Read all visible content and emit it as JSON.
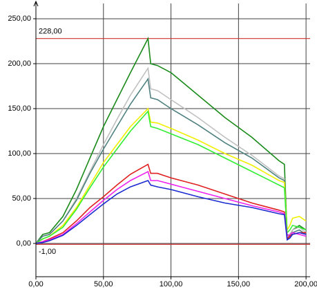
{
  "chart_data": {
    "type": "line",
    "x": [
      0,
      5,
      10,
      20,
      30,
      40,
      50,
      60,
      70,
      83,
      85,
      90,
      100,
      120,
      140,
      160,
      180,
      184,
      186,
      188,
      190,
      195,
      200
    ],
    "series": [
      {
        "color": "#1a8a1a",
        "values": [
          0,
          10,
          12,
          30,
          60,
          95,
          130,
          160,
          190,
          228,
          200,
          198,
          190,
          165,
          140,
          118,
          92,
          88,
          10,
          8,
          15,
          20,
          15
        ]
      },
      {
        "color": "#c0c0c0",
        "values": [
          0,
          8,
          10,
          25,
          50,
          80,
          110,
          138,
          165,
          195,
          172,
          170,
          160,
          140,
          118,
          98,
          75,
          72,
          8,
          10,
          15,
          18,
          12
        ]
      },
      {
        "color": "#4f8080",
        "values": [
          0,
          8,
          10,
          25,
          48,
          78,
          105,
          130,
          155,
          183,
          162,
          160,
          150,
          132,
          112,
          95,
          73,
          70,
          6,
          8,
          12,
          15,
          10
        ]
      },
      {
        "color": "#f0f000",
        "values": [
          0,
          5,
          8,
          20,
          40,
          65,
          90,
          110,
          130,
          150,
          135,
          134,
          128,
          115,
          100,
          87,
          70,
          68,
          15,
          20,
          28,
          30,
          25
        ]
      },
      {
        "color": "#33ee33",
        "values": [
          0,
          5,
          8,
          18,
          38,
          62,
          85,
          105,
          125,
          147,
          130,
          128,
          122,
          110,
          95,
          80,
          65,
          62,
          12,
          15,
          20,
          18,
          15
        ]
      },
      {
        "color": "#e02020",
        "values": [
          0,
          2,
          5,
          12,
          25,
          40,
          52,
          65,
          77,
          88,
          78,
          78,
          73,
          65,
          55,
          45,
          37,
          35,
          5,
          8,
          10,
          12,
          12
        ]
      },
      {
        "color": "#ee22ee",
        "values": [
          0,
          2,
          4,
          10,
          22,
          35,
          48,
          60,
          70,
          80,
          70,
          70,
          66,
          58,
          50,
          42,
          35,
          33,
          8,
          10,
          12,
          10,
          8
        ]
      },
      {
        "color": "#1a2ad0",
        "values": [
          0,
          1,
          3,
          9,
          20,
          32,
          44,
          55,
          63,
          70,
          65,
          63,
          60,
          52,
          45,
          40,
          33,
          32,
          4,
          6,
          10,
          12,
          10
        ]
      }
    ],
    "reference_lines": [
      {
        "value": 228,
        "label": "228,00",
        "color": "#d03030"
      },
      {
        "value": -1,
        "label": "-1,00",
        "color": "#d03030"
      }
    ],
    "xlim": [
      0,
      203
    ],
    "ylim": [
      -37,
      267
    ],
    "xticks": [
      {
        "value": 0,
        "label": "0,00"
      },
      {
        "value": 50,
        "label": "50,00"
      },
      {
        "value": 100,
        "label": "100,00"
      },
      {
        "value": 150,
        "label": "150,00"
      },
      {
        "value": 200,
        "label": "200,00"
      }
    ],
    "yticks": [
      {
        "value": 0,
        "label": "0,00"
      },
      {
        "value": 50,
        "label": "50,00"
      },
      {
        "value": 100,
        "label": "100,00"
      },
      {
        "value": 150,
        "label": "150,00"
      },
      {
        "value": 200,
        "label": "200,00"
      },
      {
        "value": 250,
        "label": "250,00"
      }
    ],
    "grid": true
  }
}
